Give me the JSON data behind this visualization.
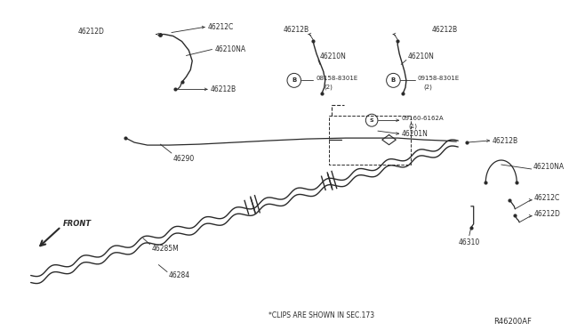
{
  "bg_color": "#ffffff",
  "line_color": "#2a2a2a",
  "text_color": "#2a2a2a",
  "fig_width": 6.4,
  "fig_height": 3.72,
  "dpi": 100,
  "diagram_ref": "R46200AF",
  "note_text": "*CLIPS ARE SHOWN IN SEC.173",
  "front_label": "FRONT"
}
